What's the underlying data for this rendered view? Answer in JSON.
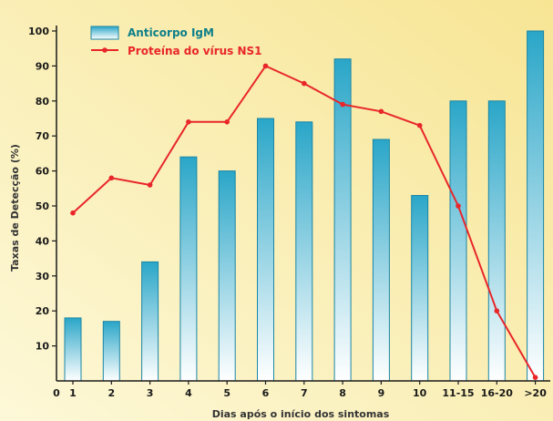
{
  "chart_data": {
    "type": "bar",
    "categories": [
      "1",
      "2",
      "3",
      "4",
      "5",
      "6",
      "7",
      "8",
      "9",
      "10",
      "11-15",
      "16-20",
      ">20"
    ],
    "origin_tick_label": "0",
    "series": [
      {
        "name": "Anticorpo IgM",
        "type": "bar",
        "values": [
          18,
          17,
          34,
          64,
          60,
          75,
          74,
          92,
          69,
          53,
          80,
          80,
          100
        ]
      },
      {
        "name": "Proteína do vírus NS1",
        "type": "line",
        "values": [
          48,
          58,
          56,
          74,
          74,
          90,
          85,
          79,
          77,
          73,
          50,
          20,
          1
        ]
      }
    ],
    "xlabel": "Dias após o início dos sintomas",
    "ylabel": "Taxas de Detecção (%)",
    "ylim": [
      0,
      100
    ],
    "yticks": [
      "10",
      "20",
      "30",
      "40",
      "50",
      "60",
      "70",
      "80",
      "90",
      "100"
    ],
    "legend_position": "top-left",
    "grid": false,
    "colors": {
      "background_light": "#fdf8d8",
      "background_dark": "#f7e594",
      "bar_top": "#2aa6c8",
      "bar_bottom": "#ffffff",
      "bar_stroke": "#1a86a6",
      "line": "#e8262a",
      "axis": "#1a1a1a",
      "legend_text": "#0e7f8a",
      "label_text": "#333333"
    }
  }
}
